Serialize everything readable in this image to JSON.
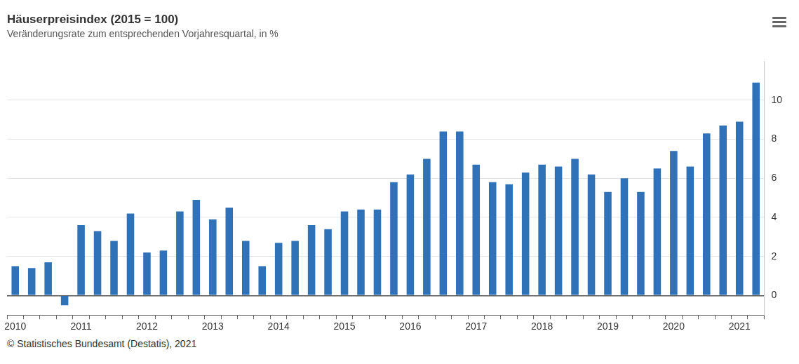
{
  "chart_data": {
    "type": "bar",
    "title": "Häuserpreisindex (2015 = 100)",
    "subtitle": "Veränderungsrate zum entsprechenden Vorjahresquartal, in %",
    "source": "© Statistisches Bundesamt (Destatis), 2021",
    "categories": [
      "2010",
      null,
      null,
      null,
      "2011",
      null,
      null,
      null,
      "2012",
      null,
      null,
      null,
      "2013",
      null,
      null,
      null,
      "2014",
      null,
      null,
      null,
      "2015",
      null,
      null,
      null,
      "2016",
      null,
      null,
      null,
      "2017",
      null,
      null,
      null,
      "2018",
      null,
      null,
      null,
      "2019",
      null,
      null,
      null,
      "2020",
      null,
      null,
      null,
      "2021",
      null
    ],
    "values": [
      1.5,
      1.4,
      1.7,
      -0.5,
      3.6,
      3.3,
      2.8,
      4.2,
      2.2,
      2.3,
      4.3,
      4.9,
      3.9,
      4.5,
      2.8,
      1.5,
      2.7,
      2.8,
      3.6,
      3.4,
      4.3,
      4.4,
      4.4,
      5.8,
      6.2,
      7.0,
      8.4,
      8.4,
      6.7,
      5.8,
      5.7,
      6.3,
      6.7,
      6.6,
      7.0,
      6.2,
      5.3,
      6.0,
      5.3,
      6.5,
      7.4,
      6.6,
      8.3,
      8.7,
      8.9,
      10.9
    ],
    "color": "#2f72b8",
    "ylim": [
      -1,
      12
    ],
    "yticks": [
      0,
      2,
      4,
      6,
      8,
      10
    ],
    "grid": true
  }
}
